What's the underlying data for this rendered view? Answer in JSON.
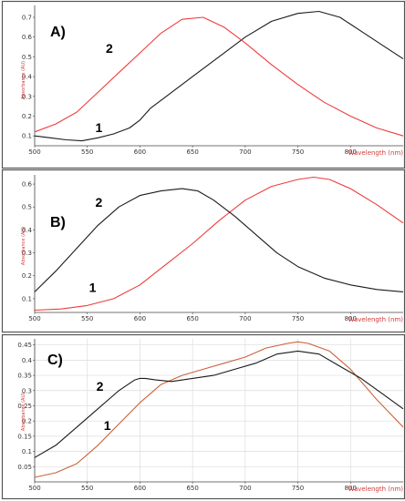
{
  "colors": {
    "panel_border": "#555555",
    "gridline": "#dcdcdc",
    "series_black": "#1a1a1a",
    "series_red": "#ee3b3b",
    "series_orange": "#c9623a"
  },
  "chart_data": [
    {
      "type": "line",
      "panel_label": "A)",
      "xlabel": "Wavelength (nm)",
      "ylabel": "Absorbance (AU)",
      "xlim": [
        500,
        850
      ],
      "ylim": [
        0.05,
        0.76
      ],
      "xticks": [
        500,
        550,
        600,
        650,
        700,
        750,
        800
      ],
      "yticks": [
        0.1,
        0.2,
        0.3,
        0.4,
        0.5,
        0.6,
        0.7
      ],
      "ytick_labels": [
        "0.1",
        "0.2",
        "0.3",
        "0.4",
        "0.5",
        "0.6",
        "0.7"
      ],
      "grid": false,
      "series": [
        {
          "name": "1",
          "color": "#1a1a1a",
          "x": [
            500,
            515,
            530,
            545,
            560,
            575,
            590,
            600,
            610,
            625,
            650,
            675,
            700,
            725,
            750,
            770,
            790,
            810,
            830,
            850
          ],
          "y": [
            0.1,
            0.09,
            0.08,
            0.075,
            0.09,
            0.11,
            0.14,
            0.18,
            0.24,
            0.3,
            0.4,
            0.5,
            0.6,
            0.68,
            0.72,
            0.73,
            0.7,
            0.63,
            0.56,
            0.49
          ]
        },
        {
          "name": "2",
          "color": "#ee3b3b",
          "x": [
            500,
            520,
            540,
            560,
            580,
            600,
            620,
            640,
            660,
            680,
            700,
            725,
            750,
            775,
            800,
            825,
            850
          ],
          "y": [
            0.12,
            0.16,
            0.22,
            0.32,
            0.42,
            0.52,
            0.62,
            0.69,
            0.7,
            0.65,
            0.57,
            0.46,
            0.36,
            0.27,
            0.2,
            0.14,
            0.1
          ]
        }
      ],
      "series_labels": [
        {
          "text": "1",
          "x": 561,
          "y": 0.12
        },
        {
          "text": "2",
          "x": 571,
          "y": 0.52
        }
      ]
    },
    {
      "type": "line",
      "panel_label": "B)",
      "xlabel": "Wavelength (nm)",
      "ylabel": "Absorbance (AU)",
      "xlim": [
        500,
        850
      ],
      "ylim": [
        0.04,
        0.64
      ],
      "xticks": [
        500,
        550,
        600,
        650,
        700,
        750,
        800
      ],
      "yticks": [
        0.1,
        0.2,
        0.3,
        0.4,
        0.5,
        0.6
      ],
      "ytick_labels": [
        "0.1",
        "0.2",
        "0.3",
        "0.4",
        "0.5",
        "0.6"
      ],
      "grid": false,
      "series": [
        {
          "name": "1",
          "color": "#ee3b3b",
          "x": [
            500,
            525,
            550,
            575,
            600,
            625,
            650,
            675,
            700,
            725,
            750,
            765,
            780,
            800,
            825,
            850
          ],
          "y": [
            0.05,
            0.055,
            0.07,
            0.1,
            0.16,
            0.25,
            0.34,
            0.44,
            0.53,
            0.59,
            0.62,
            0.63,
            0.62,
            0.58,
            0.51,
            0.43
          ]
        },
        {
          "name": "2",
          "color": "#1a1a1a",
          "x": [
            500,
            520,
            540,
            560,
            580,
            600,
            620,
            640,
            655,
            670,
            690,
            710,
            730,
            750,
            775,
            800,
            825,
            850
          ],
          "y": [
            0.13,
            0.22,
            0.32,
            0.42,
            0.5,
            0.55,
            0.57,
            0.58,
            0.57,
            0.53,
            0.46,
            0.38,
            0.3,
            0.24,
            0.19,
            0.16,
            0.14,
            0.13
          ]
        }
      ],
      "series_labels": [
        {
          "text": "1",
          "x": 555,
          "y": 0.13
        },
        {
          "text": "2",
          "x": 561,
          "y": 0.5
        }
      ]
    },
    {
      "type": "line",
      "panel_label": "C)",
      "xlabel": "Wavelength (nm)",
      "ylabel": "Absorbance (AU)",
      "xlim": [
        500,
        850
      ],
      "ylim": [
        0.0,
        0.47
      ],
      "xticks": [
        500,
        550,
        600,
        650,
        700,
        750,
        800
      ],
      "yticks": [
        0.05,
        0.1,
        0.15,
        0.2,
        0.25,
        0.3,
        0.35,
        0.4,
        0.45
      ],
      "ytick_labels": [
        "0.05",
        "0.1",
        "0.15",
        "0.2",
        "0.25",
        "0.3",
        "0.35",
        "0.4",
        "0.45"
      ],
      "grid": true,
      "series": [
        {
          "name": "1",
          "color": "#c9623a",
          "x": [
            500,
            520,
            540,
            560,
            580,
            600,
            620,
            640,
            660,
            680,
            700,
            720,
            740,
            750,
            760,
            780,
            800,
            825,
            850
          ],
          "y": [
            0.015,
            0.03,
            0.06,
            0.12,
            0.19,
            0.26,
            0.32,
            0.35,
            0.37,
            0.39,
            0.41,
            0.44,
            0.455,
            0.46,
            0.455,
            0.43,
            0.37,
            0.27,
            0.18
          ]
        },
        {
          "name": "2",
          "color": "#1a1a1a",
          "x": [
            500,
            520,
            540,
            560,
            580,
            595,
            600,
            605,
            615,
            630,
            650,
            670,
            690,
            710,
            730,
            750,
            770,
            790,
            810,
            830,
            850
          ],
          "y": [
            0.08,
            0.12,
            0.18,
            0.24,
            0.3,
            0.335,
            0.34,
            0.34,
            0.335,
            0.33,
            0.34,
            0.35,
            0.37,
            0.39,
            0.42,
            0.43,
            0.42,
            0.38,
            0.34,
            0.29,
            0.24
          ]
        }
      ],
      "series_labels": [
        {
          "text": "1",
          "x": 569,
          "y": 0.17
        },
        {
          "text": "2",
          "x": 562,
          "y": 0.3
        }
      ]
    }
  ]
}
